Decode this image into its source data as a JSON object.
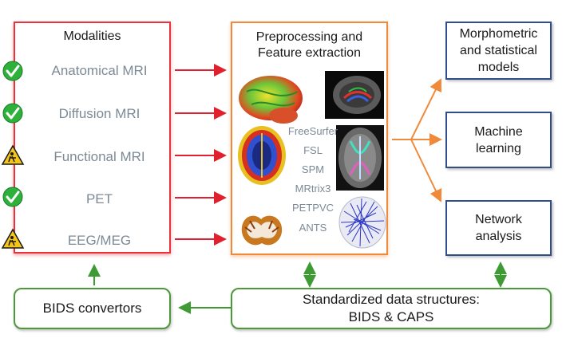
{
  "modalities": {
    "title": "Modalities",
    "items": [
      {
        "label": "Anatomical MRI",
        "status": "check"
      },
      {
        "label": "Diffusion MRI",
        "status": "check"
      },
      {
        "label": "Functional MRI",
        "status": "in-progress"
      },
      {
        "label": "PET",
        "status": "check"
      },
      {
        "label": "EEG/MEG",
        "status": "in-progress"
      }
    ]
  },
  "preprocessing": {
    "title_line1": "Preprocessing and",
    "title_line2": "Feature extraction",
    "tools": [
      "FreeSurfer",
      "FSL",
      "SPM",
      "MRtrix3",
      "PETPVC",
      "ANTS"
    ]
  },
  "outputs": [
    {
      "line1": "Morphometric",
      "line2": "and statistical",
      "line3": "models"
    },
    {
      "line1": "Machine",
      "line2": "learning"
    },
    {
      "line1": "Network",
      "line2": "analysis"
    }
  ],
  "bids_convertors": "BIDS convertors",
  "data_structures": {
    "line1": "Standardized data structures:",
    "line2": "BIDS & CAPS"
  },
  "colors": {
    "modalities_border": "#e8323c",
    "preprocessing_border": "#f08a3a",
    "models_border": "#2f4e8a",
    "green": "#4a9a3a",
    "check_icon": "#2db13a",
    "warning_icon": "#f5c518"
  }
}
